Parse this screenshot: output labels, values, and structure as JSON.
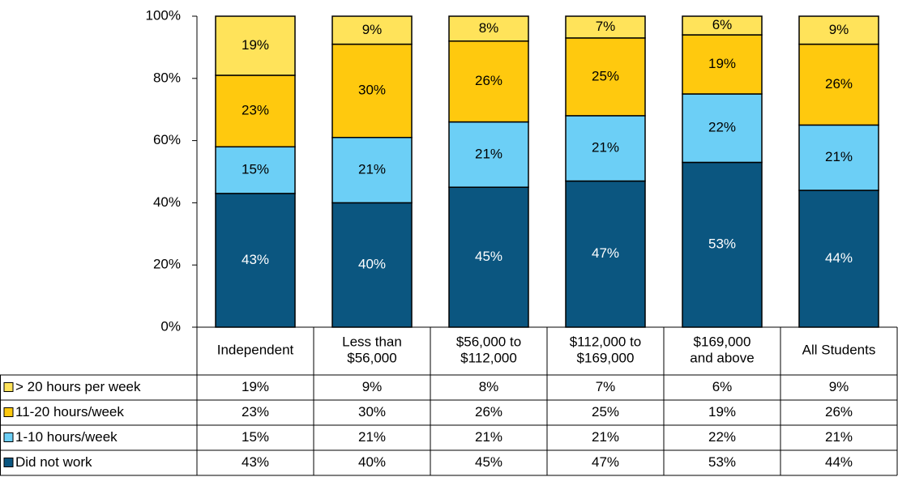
{
  "chart_data": {
    "type": "stacked_bar",
    "categories": [
      "Independent",
      "Less than\n$56,000",
      "$56,000 to\n$112,000",
      "$112,000 to\n$169,000",
      "$169,000\nand above",
      "All Students"
    ],
    "series": [
      {
        "name": "> 20 hours per week",
        "color": "#ffe35a",
        "values": [
          19,
          9,
          8,
          7,
          6,
          9
        ],
        "value_labels": [
          "19%",
          "9%",
          "8%",
          "7%",
          "6%",
          "9%"
        ]
      },
      {
        "name": "11-20 hours/week",
        "color": "#ffc90e",
        "values": [
          23,
          30,
          26,
          25,
          19,
          26
        ],
        "value_labels": [
          "23%",
          "30%",
          "26%",
          "25%",
          "19%",
          "26%"
        ]
      },
      {
        "name": "1-10 hours/week",
        "color": "#6ccff6",
        "values": [
          15,
          21,
          21,
          21,
          22,
          21
        ],
        "value_labels": [
          "15%",
          "21%",
          "21%",
          "21%",
          "22%",
          "21%"
        ]
      },
      {
        "name": "Did not work",
        "color": "#0b5680",
        "values": [
          43,
          40,
          45,
          47,
          53,
          44
        ],
        "value_labels": [
          "43%",
          "40%",
          "45%",
          "47%",
          "53%",
          "44%"
        ]
      }
    ],
    "ylim": [
      0,
      100
    ],
    "yticks": [
      {
        "value": 0,
        "label": "0%"
      },
      {
        "value": 20,
        "label": "20%"
      },
      {
        "value": 40,
        "label": "40%"
      },
      {
        "value": 60,
        "label": "60%"
      },
      {
        "value": 80,
        "label": "80%"
      },
      {
        "value": 100,
        "label": "100%"
      }
    ],
    "data_table": true
  }
}
